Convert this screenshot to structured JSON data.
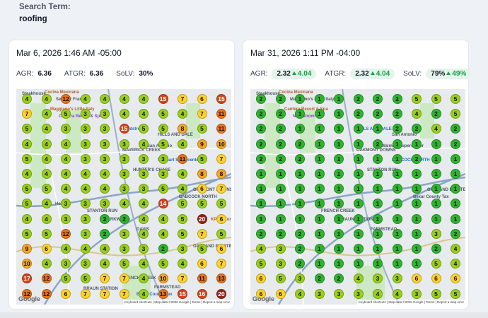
{
  "search": {
    "label": "Search Term:",
    "term": "roofing"
  },
  "colors": {
    "green": "#2fb52f",
    "lime": "#9ad01b",
    "yellow": "#ffd22a",
    "orange": "#f5a623",
    "dorange": "#e8731a",
    "red": "#d6451b",
    "dred": "#8b2a1a"
  },
  "cards": [
    {
      "date": "Mar 6, 2026 1:46 AM -05:00",
      "agr": {
        "label": "AGR:",
        "value": "6.36"
      },
      "atgr": {
        "label": "ATGR:",
        "value": "6.36"
      },
      "solv": {
        "label": "SoLV:",
        "value": "30%"
      },
      "map": {
        "labels": [
          "Steakhouse",
          "Cocina Mexicana",
          "Senator Frank L",
          "Maggiano's Little Italy",
          "Cantera Resort & Spa",
          "Nordstrom",
          "HILLS AND DALE",
          "San Antonio",
          "MAVERICK CREEK",
          "Walmart Supercenter",
          "HUNTER'S CHASE",
          "OAKMONT DOWNS",
          "BABCOCK NORTH",
          "STANTON RUN",
          "PARKWOOD",
          "DAVIS",
          "KPOT Korean BBQ & Hot Pot",
          "Helotes",
          "OAKLAND ESTATES",
          "Bexar County Tax",
          "FRENCH CREEK",
          "BRAUN STATION",
          "FARMSTEAD",
          "Google",
          "Keyboard shortcuts | Map data ©2026 Google | Terms | Report a map error"
        ],
        "grid": [
          [
            "4",
            "4",
            "12",
            "4",
            "4",
            "4",
            "4",
            "15",
            "7",
            "6",
            "15"
          ],
          [
            "7",
            "4",
            "5",
            "3",
            "3",
            "4",
            "4",
            "5",
            "4",
            "7",
            "11"
          ],
          [
            "5",
            "4",
            "3",
            "3",
            "3",
            "15",
            "5",
            "5",
            "8",
            "5",
            "11"
          ],
          [
            "4",
            "4",
            "4",
            "3",
            "3",
            "3",
            "4",
            "5",
            "4",
            "9",
            "10"
          ],
          [
            "5",
            "4",
            "4",
            "3",
            "3",
            "3",
            "3",
            "3",
            "11",
            "5",
            "7"
          ],
          [
            "4",
            "4",
            "4",
            "4",
            "4",
            "3",
            "3",
            "3",
            "4",
            "8",
            "8"
          ],
          [
            "5",
            "5",
            "4",
            "4",
            "4",
            "3",
            "3",
            "5",
            "4",
            "6",
            "7"
          ],
          [
            "5",
            "4",
            "3",
            "3",
            "3",
            "4",
            "4",
            "14",
            "5",
            "5",
            "5"
          ],
          [
            "4",
            "4",
            "3",
            "3",
            "2",
            "2",
            "4",
            "4",
            "5",
            "20",
            "6"
          ],
          [
            "5",
            "5",
            "12",
            "3",
            "2",
            "3",
            "4",
            "4",
            "5",
            "7",
            "5"
          ],
          [
            "9",
            "6",
            "4",
            "4",
            "4",
            "3",
            "3",
            "2",
            "3",
            "5",
            "6"
          ],
          [
            "10",
            "4",
            "3",
            "3",
            "4",
            "5",
            "4",
            "5",
            "4",
            "6",
            "7"
          ],
          [
            "17",
            "12",
            "5",
            "5",
            "7",
            "7",
            "4",
            "10",
            "7",
            "11",
            "13"
          ],
          [
            "12",
            "12",
            "6",
            "7",
            "7",
            "7",
            "4",
            "13",
            "15",
            "16",
            "20"
          ]
        ]
      }
    },
    {
      "date": "Mar 31, 2026 1:11 PM -04:00",
      "agr": {
        "label": "AGR:",
        "value": "2.32",
        "delta": "4.04"
      },
      "atgr": {
        "label": "ATGR:",
        "value": "2.32",
        "delta": "4.04"
      },
      "solv": {
        "label": "SoLV:",
        "value": "79%",
        "delta": "49%"
      },
      "map": {
        "labels": [
          "Steakhouse",
          "Cocina Mexicana",
          "Maggiano's Little Italy",
          "Cantera Resort & Spa",
          "Nordstrom",
          "HILLS AND DALE",
          "San Antonio",
          "Walmart Supercenter",
          "OAKMONT DOWNS",
          "BABCOCK NORTH",
          "STANTON RUN",
          "OAKLAND ESTATES",
          "Bexar County Tax",
          "FRENCH CREEK",
          "BRAUN STATION",
          "FARMSTEAD",
          "Google",
          "Keyboard shortcuts | Map data ©2026 Google | Terms | Report a map error"
        ],
        "grid": [
          [
            "2",
            "2",
            "1",
            "1",
            "1",
            "2",
            "2",
            "2",
            "5",
            "5",
            "5"
          ],
          [
            "2",
            "2",
            "1",
            "1",
            "1",
            "2",
            "2",
            "2",
            "4",
            "2",
            "5"
          ],
          [
            "2",
            "2",
            "1",
            "1",
            "1",
            "1",
            "1",
            "2",
            "2",
            "4",
            "2"
          ],
          [
            "2",
            "2",
            "2",
            "1",
            "1",
            "1",
            "2",
            "1",
            "1",
            "1",
            "2"
          ],
          [
            "2",
            "2",
            "2",
            "1",
            "1",
            "1",
            "1",
            "1",
            "2",
            "1",
            "1"
          ],
          [
            "1",
            "1",
            "1",
            "1",
            "1",
            "1",
            "1",
            "1",
            "1",
            "1",
            "1"
          ],
          [
            "1",
            "1",
            "1",
            "1",
            "1",
            "1",
            "1",
            "1",
            "1",
            "1",
            "1"
          ],
          [
            "1",
            "1",
            "1",
            "1",
            "1",
            "1",
            "1",
            "1",
            "1",
            "1",
            "1"
          ],
          [
            "1",
            "1",
            "1",
            "1",
            "1",
            "1",
            "1",
            "1",
            "1",
            "1",
            "1"
          ],
          [
            "2",
            "2",
            "2",
            "1",
            "1",
            "1",
            "1",
            "1",
            "1",
            "3",
            "2"
          ],
          [
            "4",
            "3",
            "2",
            "1",
            "1",
            "1",
            "1",
            "1",
            "1",
            "2",
            "4"
          ],
          [
            "5",
            "3",
            "2",
            "1",
            "1",
            "1",
            "1",
            "1",
            "1",
            "5",
            "4"
          ],
          [
            "6",
            "5",
            "3",
            "2",
            "2",
            "4",
            "3",
            "3",
            "6",
            "6",
            "6"
          ],
          [
            "6",
            "6",
            "4",
            "3",
            "3",
            "3",
            "4",
            "4",
            "3",
            "5",
            "5"
          ]
        ]
      }
    }
  ]
}
